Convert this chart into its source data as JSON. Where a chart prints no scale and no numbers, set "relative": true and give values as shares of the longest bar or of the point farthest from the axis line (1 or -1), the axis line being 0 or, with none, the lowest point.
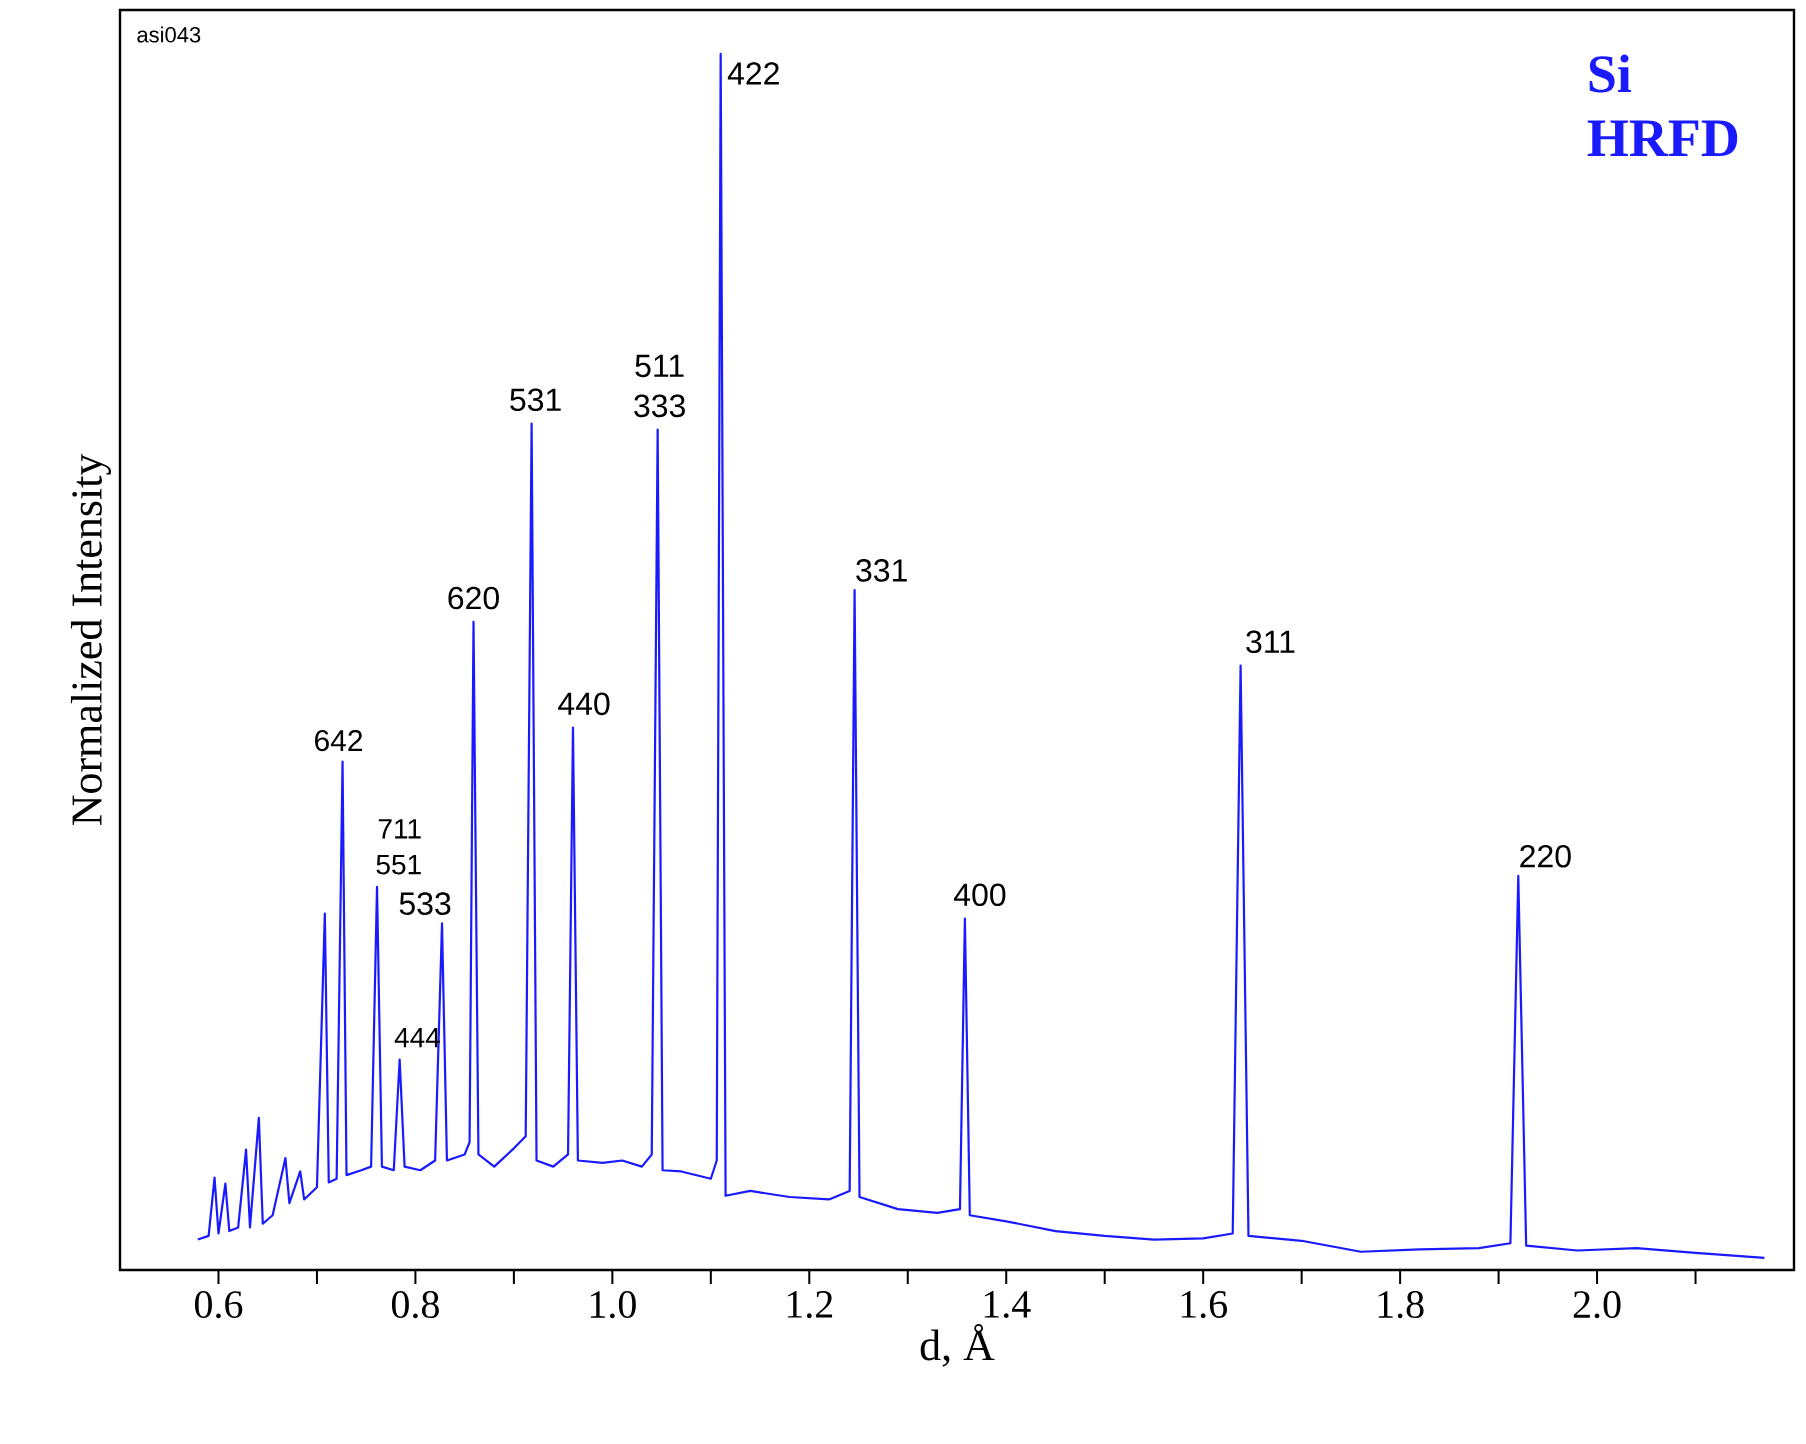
{
  "chart_data": {
    "type": "line",
    "title": "Si",
    "subtitle": "HRFD",
    "xlabel": "d, Å",
    "ylabel": "Normalized Intensity",
    "relative": true,
    "xlim": [
      0.5,
      2.2
    ],
    "xticks": [
      0.6,
      {
        "value": 0.7,
        "label": null
      },
      0.8,
      {
        "value": 0.9,
        "label": null
      },
      {
        "value": 1,
        "label": "1.0"
      },
      {
        "value": 1.1,
        "label": null
      },
      1.2,
      {
        "value": 1.3,
        "label": null
      },
      1.4,
      {
        "value": 1.5,
        "label": null
      },
      1.6,
      {
        "value": 1.7,
        "label": null
      },
      1.8,
      {
        "value": 1.9,
        "label": null
      },
      {
        "value": 2,
        "label": "2.0"
      },
      {
        "value": 2.1,
        "label": null
      }
    ],
    "series": [
      {
        "color": "#1a1aff",
        "x": [
          0.579,
          0.59,
          0.596,
          0.6,
          0.607,
          0.611,
          0.62,
          0.628,
          0.632,
          0.641,
          0.645,
          0.655,
          0.668,
          0.672,
          0.683,
          0.687,
          0.7,
          0.708,
          0.712,
          0.72,
          0.726,
          0.73,
          0.745,
          0.755,
          0.761,
          0.766,
          0.778,
          0.784,
          0.789,
          0.805,
          0.82,
          0.827,
          0.832,
          0.85,
          0.855,
          0.859,
          0.864,
          0.88,
          0.9,
          0.912,
          0.918,
          0.923,
          0.94,
          0.955,
          0.96,
          0.965,
          0.99,
          1.01,
          1.03,
          1.04,
          1.046,
          1.051,
          1.07,
          1.1,
          1.106,
          1.11,
          1.115,
          1.14,
          1.18,
          1.22,
          1.241,
          1.246,
          1.251,
          1.29,
          1.33,
          1.353,
          1.358,
          1.363,
          1.4,
          1.45,
          1.5,
          1.55,
          1.6,
          1.63,
          1.638,
          1.646,
          1.7,
          1.76,
          1.82,
          1.88,
          1.912,
          1.92,
          1.928,
          1.98,
          2.04,
          2.1,
          2.17
        ],
        "values": [
          0.025,
          0.028,
          0.076,
          0.03,
          0.071,
          0.032,
          0.035,
          0.099,
          0.035,
          0.125,
          0.038,
          0.045,
          0.092,
          0.055,
          0.081,
          0.058,
          0.068,
          0.293,
          0.072,
          0.075,
          0.418,
          0.078,
          0.082,
          0.085,
          0.315,
          0.085,
          0.082,
          0.173,
          0.085,
          0.082,
          0.09,
          0.285,
          0.09,
          0.095,
          0.105,
          0.533,
          0.095,
          0.085,
          0.1,
          0.11,
          0.696,
          0.09,
          0.085,
          0.095,
          0.446,
          0.09,
          0.088,
          0.09,
          0.085,
          0.095,
          0.691,
          0.082,
          0.081,
          0.075,
          0.09,
          1.0,
          0.061,
          0.065,
          0.06,
          0.058,
          0.065,
          0.559,
          0.06,
          0.05,
          0.047,
          0.05,
          0.289,
          0.045,
          0.04,
          0.032,
          0.028,
          0.025,
          0.026,
          0.03,
          0.497,
          0.028,
          0.024,
          0.015,
          0.017,
          0.018,
          0.022,
          0.324,
          0.02,
          0.016,
          0.018,
          0.014,
          0.01
        ]
      }
    ],
    "annotations": [
      {
        "text": "422",
        "x": 1.11,
        "y": 1.0
      },
      {
        "text": "331",
        "x": 1.246,
        "y": 0.559
      },
      {
        "text": "400",
        "x": 1.358,
        "y": 0.289
      },
      {
        "text": "311",
        "x": 1.638,
        "y": 0.497
      },
      {
        "text": "220",
        "x": 1.92,
        "y": 0.324
      },
      {
        "text": "531",
        "x": 0.918,
        "y": 0.696
      },
      {
        "text": "511",
        "x": 1.046,
        "y": 0.691
      },
      {
        "text": "333",
        "x": 1.046,
        "y": 0.691
      },
      {
        "text": "620",
        "x": 0.859,
        "y": 0.533
      },
      {
        "text": "440",
        "x": 0.96,
        "y": 0.446
      },
      {
        "text": "642",
        "x": 0.726,
        "y": 0.418
      },
      {
        "text": "711",
        "x": 0.761,
        "y": 0.315
      },
      {
        "text": "551",
        "x": 0.761,
        "y": 0.315
      },
      {
        "text": "533",
        "x": 0.827,
        "y": 0.285
      },
      {
        "text": "444",
        "x": 0.784,
        "y": 0.173
      },
      "asi043"
    ]
  }
}
